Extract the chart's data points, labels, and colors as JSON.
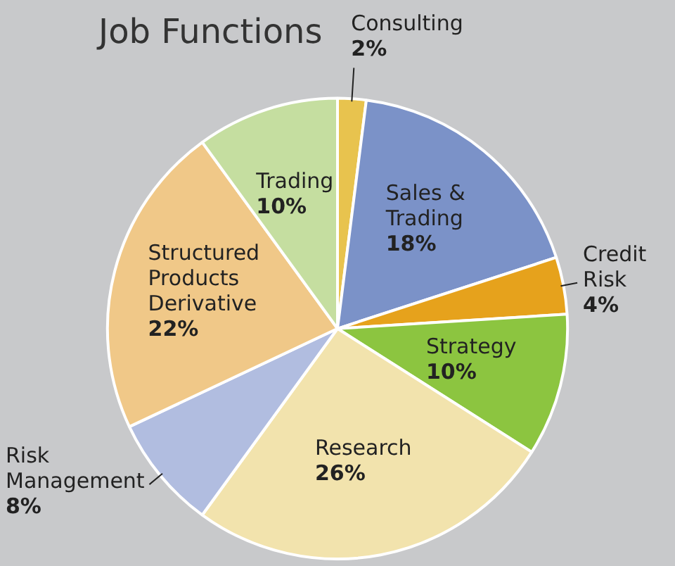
{
  "chart_data": {
    "type": "pie",
    "title": "Job Functions",
    "categories": [
      "Consulting",
      "Sales & Trading",
      "Credit Risk",
      "Strategy",
      "Research",
      "Risk Management",
      "Structured Products Derivative",
      "Trading"
    ],
    "values": [
      2,
      18,
      4,
      10,
      26,
      8,
      22,
      10
    ],
    "value_labels": [
      "2%",
      "18%",
      "4%",
      "10%",
      "26%",
      "8%",
      "22%",
      "10%"
    ],
    "colors": [
      "#e8c34e",
      "#7b92c8",
      "#e6a21c",
      "#8cc540",
      "#f2e3ad",
      "#b1bde0",
      "#f0c888",
      "#c5dea0"
    ],
    "legend": false
  }
}
